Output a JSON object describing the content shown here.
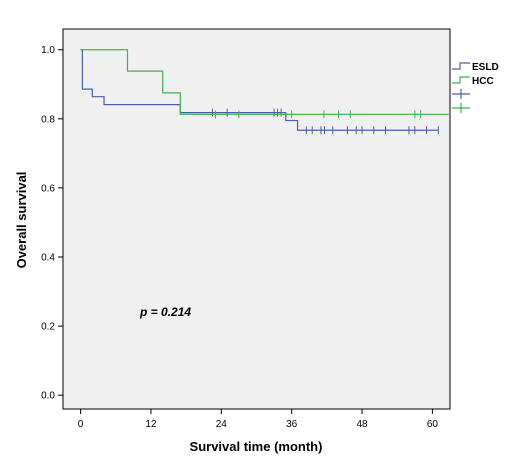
{
  "chart_data": {
    "type": "line",
    "xlabel": "Survival time (month)",
    "ylabel": "Overall survival",
    "xlim": [
      -3,
      63
    ],
    "ylim": [
      -0.04,
      1.06
    ],
    "x_ticks": [
      0,
      12,
      24,
      36,
      48,
      60
    ],
    "y_ticks": [
      0.0,
      0.2,
      0.4,
      0.6,
      0.8,
      1.0
    ],
    "x_tick_labels": [
      "0",
      "12",
      "24",
      "36",
      "48",
      "60"
    ],
    "y_tick_labels": [
      "0.0",
      "0.2",
      "0.4",
      "0.6",
      "0.8",
      "1.0"
    ],
    "annotation": "p = 0.214",
    "grid": false,
    "background": "#f0f0f0",
    "legend_position": "right",
    "series": [
      {
        "name": "ESLD",
        "color": "#4a5ea8",
        "steps": [
          [
            0,
            1.0
          ],
          [
            0.3,
            0.886
          ],
          [
            2,
            0.864
          ],
          [
            4,
            0.841
          ],
          [
            17,
            0.818
          ],
          [
            35,
            0.795
          ],
          [
            37,
            0.767
          ],
          [
            61,
            0.767
          ]
        ],
        "censored": [
          [
            22.5,
            0.818
          ],
          [
            25,
            0.818
          ],
          [
            33,
            0.818
          ],
          [
            33.6,
            0.818
          ],
          [
            34.2,
            0.818
          ],
          [
            38.5,
            0.767
          ],
          [
            39.5,
            0.767
          ],
          [
            41,
            0.767
          ],
          [
            41.6,
            0.767
          ],
          [
            43,
            0.767
          ],
          [
            45.5,
            0.767
          ],
          [
            47,
            0.767
          ],
          [
            48,
            0.767
          ],
          [
            50,
            0.767
          ],
          [
            52,
            0.767
          ],
          [
            56,
            0.767
          ],
          [
            57,
            0.767
          ],
          [
            59,
            0.767
          ],
          [
            61,
            0.767
          ]
        ]
      },
      {
        "name": "HCC",
        "color": "#3fb34a",
        "steps": [
          [
            0,
            1.0
          ],
          [
            8,
            0.938
          ],
          [
            14,
            0.875
          ],
          [
            17,
            0.813
          ],
          [
            63,
            0.813
          ]
        ],
        "censored": [
          [
            23,
            0.813
          ],
          [
            27,
            0.813
          ],
          [
            36,
            0.813
          ],
          [
            41.5,
            0.813
          ],
          [
            44,
            0.813
          ],
          [
            46,
            0.813
          ],
          [
            57,
            0.813
          ],
          [
            58,
            0.813
          ]
        ]
      }
    ],
    "legend": [
      {
        "label": "ESLD",
        "color": "#4a5ea8",
        "kind": "line"
      },
      {
        "label": "HCC",
        "color": "#3fb34a",
        "kind": "line"
      },
      {
        "label": "",
        "color": "#4a5ea8",
        "kind": "censor"
      },
      {
        "label": "",
        "color": "#3fb34a",
        "kind": "censor"
      }
    ]
  }
}
